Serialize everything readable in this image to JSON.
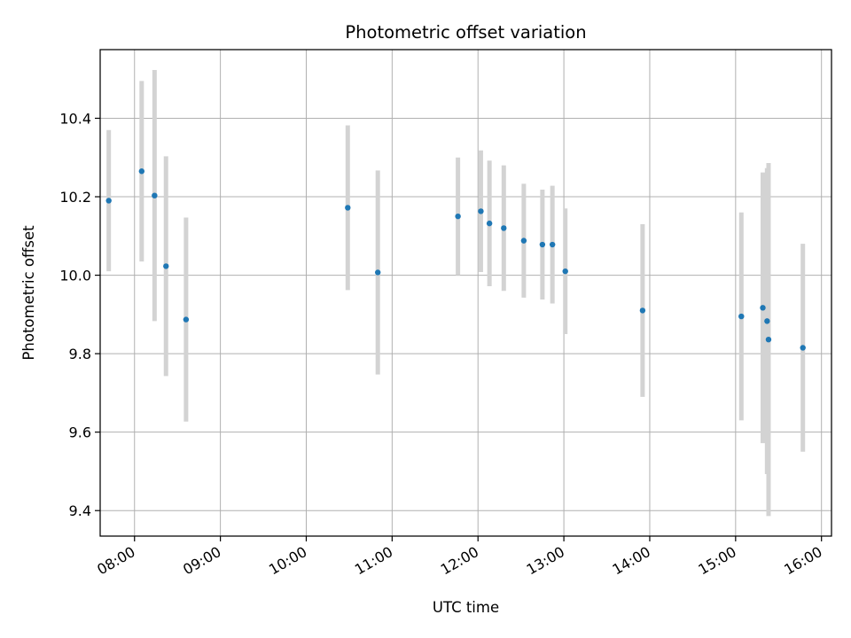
{
  "chart_data": {
    "type": "scatter",
    "title": "Photometric offset variation",
    "xlabel": "UTC time",
    "ylabel": "Photometric offset",
    "x_is_time": true,
    "x_tick_labels": [
      "08:00",
      "09:00",
      "10:00",
      "11:00",
      "12:00",
      "13:00",
      "14:00",
      "15:00",
      "16:00"
    ],
    "y_ticks": [
      9.4,
      9.6,
      9.8,
      10.0,
      10.2,
      10.4
    ],
    "y_tick_labels": [
      "9.4",
      "9.6",
      "9.8",
      "10.0",
      "10.2",
      "10.4"
    ],
    "xlim": [
      "07:36",
      "16:07"
    ],
    "ylim": [
      9.335,
      10.575
    ],
    "grid": true,
    "legend": "none",
    "colors": {
      "point": "#1f77b4",
      "errorbar": "#d3d3d3",
      "grid": "#b0b0b0"
    },
    "series": [
      {
        "points": [
          {
            "x": "07:42",
            "y": 10.19,
            "err": 0.18
          },
          {
            "x": "08:05",
            "y": 10.265,
            "err": 0.23
          },
          {
            "x": "08:14",
            "y": 10.203,
            "err": 0.32
          },
          {
            "x": "08:22",
            "y": 10.023,
            "err": 0.28
          },
          {
            "x": "08:36",
            "y": 9.887,
            "err": 0.26
          },
          {
            "x": "10:29",
            "y": 10.172,
            "err": 0.21
          },
          {
            "x": "10:50",
            "y": 10.007,
            "err": 0.26
          },
          {
            "x": "11:46",
            "y": 10.15,
            "err": 0.15
          },
          {
            "x": "12:02",
            "y": 10.163,
            "err": 0.155
          },
          {
            "x": "12:08",
            "y": 10.132,
            "err": 0.16
          },
          {
            "x": "12:18",
            "y": 10.12,
            "err": 0.16
          },
          {
            "x": "12:32",
            "y": 10.088,
            "err": 0.145
          },
          {
            "x": "12:45",
            "y": 10.078,
            "err": 0.14
          },
          {
            "x": "12:52",
            "y": 10.078,
            "err": 0.15
          },
          {
            "x": "13:01",
            "y": 10.01,
            "err": 0.16
          },
          {
            "x": "13:55",
            "y": 9.91,
            "err": 0.22
          },
          {
            "x": "15:04",
            "y": 9.895,
            "err": 0.265
          },
          {
            "x": "15:19",
            "y": 9.917,
            "err": 0.345
          },
          {
            "x": "15:22",
            "y": 9.883,
            "err": 0.39
          },
          {
            "x": "15:23",
            "y": 9.836,
            "err": 0.45
          },
          {
            "x": "15:47",
            "y": 9.815,
            "err": 0.265
          }
        ]
      }
    ]
  }
}
